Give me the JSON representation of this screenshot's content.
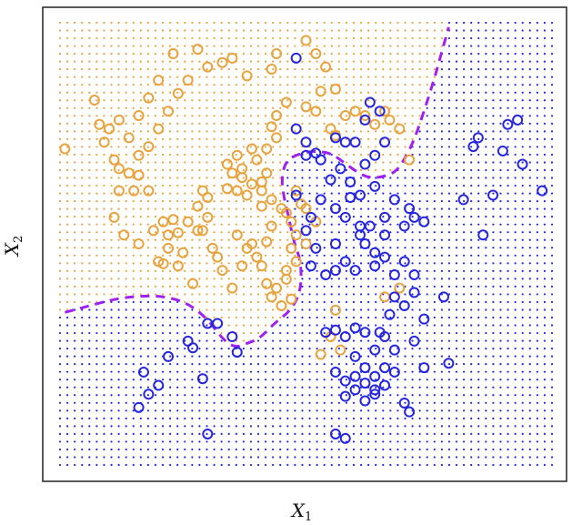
{
  "chart_data": {
    "type": "scatter",
    "title": "",
    "xlabel": "X",
    "xlabel_subscript": "1",
    "ylabel": "X",
    "ylabel_subscript": "2",
    "xlim": [
      0,
      1
    ],
    "ylim": [
      0,
      1
    ],
    "x_ticks": [],
    "y_ticks": [],
    "grid": false,
    "legend": "none",
    "colors": {
      "orange": "#E8A33D",
      "blue": "#2626E0",
      "boundary": "#A020F0",
      "frame": "#222222"
    },
    "background_grid": {
      "nx": 68,
      "ny": 58
    },
    "decision_boundary": {
      "style": "dashed",
      "points": [
        [
          0.01,
          0.345
        ],
        [
          0.06,
          0.36
        ],
        [
          0.11,
          0.375
        ],
        [
          0.16,
          0.382
        ],
        [
          0.21,
          0.382
        ],
        [
          0.26,
          0.366
        ],
        [
          0.3,
          0.33
        ],
        [
          0.33,
          0.285
        ],
        [
          0.355,
          0.265
        ],
        [
          0.38,
          0.275
        ],
        [
          0.405,
          0.285
        ],
        [
          0.435,
          0.32
        ],
        [
          0.47,
          0.35
        ],
        [
          0.49,
          0.395
        ],
        [
          0.49,
          0.46
        ],
        [
          0.475,
          0.505
        ],
        [
          0.465,
          0.56
        ],
        [
          0.455,
          0.605
        ],
        [
          0.45,
          0.65
        ],
        [
          0.46,
          0.69
        ],
        [
          0.49,
          0.705
        ],
        [
          0.52,
          0.71
        ],
        [
          0.55,
          0.705
        ],
        [
          0.57,
          0.69
        ],
        [
          0.6,
          0.665
        ],
        [
          0.625,
          0.65
        ],
        [
          0.65,
          0.65
        ],
        [
          0.68,
          0.66
        ],
        [
          0.7,
          0.69
        ],
        [
          0.72,
          0.735
        ],
        [
          0.74,
          0.8
        ],
        [
          0.76,
          0.87
        ],
        [
          0.775,
          0.93
        ],
        [
          0.79,
          0.99
        ]
      ]
    },
    "series": [
      {
        "color": "orange",
        "points": [
          [
            0.01,
            0.715
          ],
          [
            0.07,
            0.825
          ],
          [
            0.08,
            0.77
          ],
          [
            0.1,
            0.76
          ],
          [
            0.09,
            0.73
          ],
          [
            0.11,
            0.69
          ],
          [
            0.12,
            0.67
          ],
          [
            0.14,
            0.66
          ],
          [
            0.16,
            0.655
          ],
          [
            0.12,
            0.62
          ],
          [
            0.15,
            0.62
          ],
          [
            0.18,
            0.62
          ],
          [
            0.11,
            0.56
          ],
          [
            0.13,
            0.52
          ],
          [
            0.16,
            0.5
          ],
          [
            0.19,
            0.53
          ],
          [
            0.21,
            0.55
          ],
          [
            0.22,
            0.52
          ],
          [
            0.23,
            0.555
          ],
          [
            0.24,
            0.525
          ],
          [
            0.26,
            0.55
          ],
          [
            0.28,
            0.585
          ],
          [
            0.29,
            0.53
          ],
          [
            0.31,
            0.49
          ],
          [
            0.32,
            0.47
          ],
          [
            0.22,
            0.49
          ],
          [
            0.2,
            0.46
          ],
          [
            0.21,
            0.455
          ],
          [
            0.24,
            0.45
          ],
          [
            0.27,
            0.41
          ],
          [
            0.25,
            0.48
          ],
          [
            0.29,
            0.62
          ],
          [
            0.3,
            0.605
          ],
          [
            0.34,
            0.625
          ],
          [
            0.36,
            0.62
          ],
          [
            0.37,
            0.65
          ],
          [
            0.38,
            0.61
          ],
          [
            0.39,
            0.635
          ],
          [
            0.41,
            0.585
          ],
          [
            0.43,
            0.54
          ],
          [
            0.41,
            0.64
          ],
          [
            0.36,
            0.7
          ],
          [
            0.34,
            0.68
          ],
          [
            0.35,
            0.66
          ],
          [
            0.37,
            0.67
          ],
          [
            0.39,
            0.715
          ],
          [
            0.4,
            0.69
          ],
          [
            0.42,
            0.66
          ],
          [
            0.42,
            0.715
          ],
          [
            0.44,
            0.74
          ],
          [
            0.43,
            0.765
          ],
          [
            0.44,
            0.79
          ],
          [
            0.46,
            0.82
          ],
          [
            0.5,
            0.81
          ],
          [
            0.52,
            0.8
          ],
          [
            0.53,
            0.845
          ],
          [
            0.55,
            0.76
          ],
          [
            0.56,
            0.745
          ],
          [
            0.58,
            0.79
          ],
          [
            0.6,
            0.8
          ],
          [
            0.62,
            0.79
          ],
          [
            0.64,
            0.77
          ],
          [
            0.66,
            0.8
          ],
          [
            0.67,
            0.78
          ],
          [
            0.69,
            0.76
          ],
          [
            0.71,
            0.69
          ],
          [
            0.56,
            0.85
          ],
          [
            0.54,
            0.9
          ],
          [
            0.52,
            0.93
          ],
          [
            0.5,
            0.96
          ],
          [
            0.44,
            0.93
          ],
          [
            0.43,
            0.895
          ],
          [
            0.38,
            0.88
          ],
          [
            0.35,
            0.92
          ],
          [
            0.33,
            0.91
          ],
          [
            0.3,
            0.9
          ],
          [
            0.28,
            0.94
          ],
          [
            0.26,
            0.87
          ],
          [
            0.24,
            0.84
          ],
          [
            0.22,
            0.8
          ],
          [
            0.2,
            0.76
          ],
          [
            0.18,
            0.72
          ],
          [
            0.16,
            0.7
          ],
          [
            0.14,
            0.74
          ],
          [
            0.12,
            0.78
          ],
          [
            0.16,
            0.79
          ],
          [
            0.18,
            0.83
          ],
          [
            0.2,
            0.87
          ],
          [
            0.23,
            0.93
          ],
          [
            0.36,
            0.52
          ],
          [
            0.38,
            0.49
          ],
          [
            0.4,
            0.47
          ],
          [
            0.41,
            0.45
          ],
          [
            0.42,
            0.41
          ],
          [
            0.43,
            0.38
          ],
          [
            0.45,
            0.36
          ],
          [
            0.44,
            0.4
          ],
          [
            0.46,
            0.44
          ],
          [
            0.47,
            0.49
          ],
          [
            0.48,
            0.52
          ],
          [
            0.47,
            0.55
          ],
          [
            0.49,
            0.59
          ],
          [
            0.45,
            0.58
          ],
          [
            0.43,
            0.6
          ],
          [
            0.41,
            0.62
          ],
          [
            0.33,
            0.44
          ],
          [
            0.35,
            0.4
          ],
          [
            0.37,
            0.45
          ],
          [
            0.39,
            0.5
          ],
          [
            0.42,
            0.505
          ],
          [
            0.46,
            0.57
          ],
          [
            0.48,
            0.62
          ],
          [
            0.55,
            0.29
          ],
          [
            0.57,
            0.26
          ],
          [
            0.53,
            0.25
          ],
          [
            0.66,
            0.38
          ],
          [
            0.69,
            0.4
          ],
          [
            0.56,
            0.35
          ],
          [
            0.5,
            0.58
          ],
          [
            0.52,
            0.55
          ],
          [
            0.5,
            0.5
          ],
          [
            0.48,
            0.46
          ],
          [
            0.46,
            0.42
          ],
          [
            0.47,
            0.375
          ],
          [
            0.28,
            0.53
          ],
          [
            0.3,
            0.56
          ]
        ]
      },
      {
        "color": "blue",
        "points": [
          [
            0.48,
            0.92
          ],
          [
            0.63,
            0.82
          ],
          [
            0.65,
            0.8
          ],
          [
            0.62,
            0.78
          ],
          [
            0.6,
            0.73
          ],
          [
            0.58,
            0.73
          ],
          [
            0.56,
            0.74
          ],
          [
            0.64,
            0.7
          ],
          [
            0.66,
            0.73
          ],
          [
            0.62,
            0.68
          ],
          [
            0.5,
            0.7
          ],
          [
            0.53,
            0.69
          ],
          [
            0.57,
            0.67
          ],
          [
            0.59,
            0.64
          ],
          [
            0.61,
            0.61
          ],
          [
            0.64,
            0.63
          ],
          [
            0.68,
            0.6
          ],
          [
            0.71,
            0.58
          ],
          [
            0.72,
            0.56
          ],
          [
            0.7,
            0.54
          ],
          [
            0.66,
            0.52
          ],
          [
            0.63,
            0.54
          ],
          [
            0.61,
            0.52
          ],
          [
            0.58,
            0.56
          ],
          [
            0.56,
            0.58
          ],
          [
            0.53,
            0.6
          ],
          [
            0.51,
            0.56
          ],
          [
            0.5,
            0.53
          ],
          [
            0.48,
            0.61
          ],
          [
            0.52,
            0.49
          ],
          [
            0.51,
            0.45
          ],
          [
            0.54,
            0.43
          ],
          [
            0.56,
            0.5
          ],
          [
            0.58,
            0.46
          ],
          [
            0.6,
            0.44
          ],
          [
            0.62,
            0.5
          ],
          [
            0.64,
            0.45
          ],
          [
            0.66,
            0.47
          ],
          [
            0.68,
            0.43
          ],
          [
            0.7,
            0.46
          ],
          [
            0.72,
            0.43
          ],
          [
            0.74,
            0.55
          ],
          [
            0.68,
            0.38
          ],
          [
            0.7,
            0.36
          ],
          [
            0.72,
            0.39
          ],
          [
            0.67,
            0.34
          ],
          [
            0.65,
            0.3
          ],
          [
            0.62,
            0.3
          ],
          [
            0.6,
            0.31
          ],
          [
            0.58,
            0.29
          ],
          [
            0.56,
            0.305
          ],
          [
            0.54,
            0.3
          ],
          [
            0.6,
            0.245
          ],
          [
            0.62,
            0.22
          ],
          [
            0.64,
            0.26
          ],
          [
            0.66,
            0.29
          ],
          [
            0.68,
            0.26
          ],
          [
            0.66,
            0.18
          ],
          [
            0.64,
            0.2
          ],
          [
            0.66,
            0.22
          ],
          [
            0.6,
            0.2
          ],
          [
            0.58,
            0.19
          ],
          [
            0.56,
            0.21
          ],
          [
            0.6,
            0.17
          ],
          [
            0.62,
            0.145
          ],
          [
            0.64,
            0.16
          ],
          [
            0.68,
            0.21
          ],
          [
            0.7,
            0.14
          ],
          [
            0.72,
            0.28
          ],
          [
            0.74,
            0.33
          ],
          [
            0.78,
            0.38
          ],
          [
            0.79,
            0.23
          ],
          [
            0.82,
            0.6
          ],
          [
            0.84,
            0.72
          ],
          [
            0.86,
            0.52
          ],
          [
            0.88,
            0.61
          ],
          [
            0.9,
            0.71
          ],
          [
            0.91,
            0.77
          ],
          [
            0.93,
            0.78
          ],
          [
            0.94,
            0.68
          ],
          [
            0.98,
            0.62
          ],
          [
            0.85,
            0.74
          ],
          [
            0.3,
            0.32
          ],
          [
            0.32,
            0.32
          ],
          [
            0.35,
            0.29
          ],
          [
            0.36,
            0.255
          ],
          [
            0.26,
            0.28
          ],
          [
            0.22,
            0.245
          ],
          [
            0.2,
            0.18
          ],
          [
            0.18,
            0.16
          ],
          [
            0.16,
            0.13
          ],
          [
            0.17,
            0.21
          ],
          [
            0.29,
            0.195
          ],
          [
            0.27,
            0.265
          ],
          [
            0.3,
            0.07
          ],
          [
            0.56,
            0.07
          ],
          [
            0.58,
            0.06
          ],
          [
            0.58,
            0.155
          ],
          [
            0.62,
            0.185
          ],
          [
            0.64,
            0.17
          ],
          [
            0.71,
            0.12
          ],
          [
            0.74,
            0.22
          ],
          [
            0.48,
            0.76
          ],
          [
            0.5,
            0.73
          ],
          [
            0.52,
            0.705
          ],
          [
            0.55,
            0.645
          ],
          [
            0.59,
            0.605
          ],
          [
            0.66,
            0.56
          ],
          [
            0.64,
            0.48
          ],
          [
            0.61,
            0.54
          ],
          [
            0.56,
            0.44
          ]
        ]
      }
    ]
  }
}
